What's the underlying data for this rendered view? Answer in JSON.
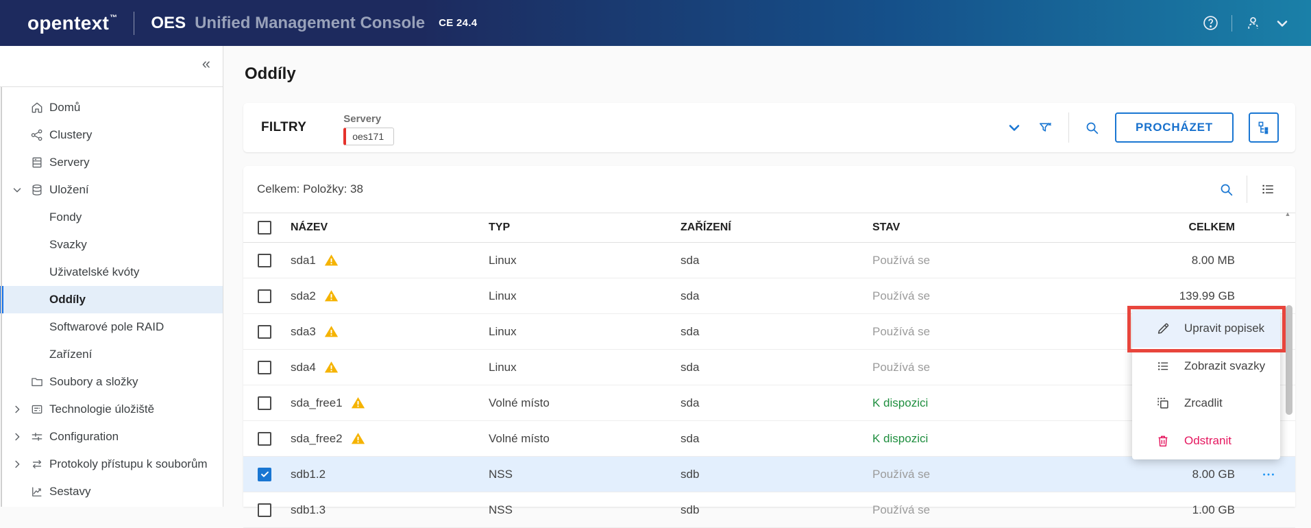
{
  "app_header": {
    "brand": "opentext",
    "brand_tm": "™",
    "product": "OES",
    "product_title": "Unified Management Console",
    "version": "CE 24.4"
  },
  "sidebar": {
    "collapse_glyph": "«",
    "items": [
      {
        "label": "Domů",
        "icon": "home-icon",
        "level": 1
      },
      {
        "label": "Clustery",
        "icon": "clusters-icon",
        "level": 1
      },
      {
        "label": "Servery",
        "icon": "servers-icon",
        "level": 1
      },
      {
        "label": "Uložení",
        "icon": "storage-icon",
        "level": 1,
        "chevron": "down",
        "expanded": true
      },
      {
        "label": "Fondy",
        "level": 2
      },
      {
        "label": "Svazky",
        "level": 2
      },
      {
        "label": "Uživatelské kvóty",
        "level": 2
      },
      {
        "label": "Oddíly",
        "level": 2,
        "active": true
      },
      {
        "label": "Softwarové pole RAID",
        "level": 2
      },
      {
        "label": "Zařízení",
        "level": 2
      },
      {
        "label": "Soubory a složky",
        "icon": "folder-icon",
        "level": 1
      },
      {
        "label": "Technologie úložiště",
        "icon": "storage-tech-icon",
        "level": 1,
        "chevron": "right"
      },
      {
        "label": "Configuration",
        "icon": "configuration-icon",
        "level": 1,
        "chevron": "right"
      },
      {
        "label": "Protokoly přístupu k souborům",
        "icon": "protocols-icon",
        "level": 1,
        "chevron": "right"
      },
      {
        "label": "Sestavy",
        "icon": "reports-icon",
        "level": 1
      }
    ]
  },
  "page": {
    "title": "Oddíly"
  },
  "filter_bar": {
    "label": "FILTRY",
    "filter_group_label": "Servery",
    "filter_chip": "oes171",
    "browse_button": "PROCHÁZET"
  },
  "table": {
    "summary": "Celkem: Položky: 38",
    "columns": [
      "NÁZEV",
      "TYP",
      "ZAŘÍZENÍ",
      "STAV",
      "CELKEM"
    ],
    "rows": [
      {
        "name": "sda1",
        "warning": true,
        "type": "Linux",
        "device": "sda",
        "status": "Používá se",
        "status_kind": "used",
        "total": "8.00 MB"
      },
      {
        "name": "sda2",
        "warning": true,
        "type": "Linux",
        "device": "sda",
        "status": "Používá se",
        "status_kind": "used",
        "total": "139.99 GB"
      },
      {
        "name": "sda3",
        "warning": true,
        "type": "Linux",
        "device": "sda",
        "status": "Používá se",
        "status_kind": "used",
        "total": ""
      },
      {
        "name": "sda4",
        "warning": true,
        "type": "Linux",
        "device": "sda",
        "status": "Používá se",
        "status_kind": "used",
        "total": ""
      },
      {
        "name": "sda_free1",
        "warning": true,
        "type": "Volné místo",
        "device": "sda",
        "status": "K dispozici",
        "status_kind": "available",
        "total": ""
      },
      {
        "name": "sda_free2",
        "warning": true,
        "type": "Volné místo",
        "device": "sda",
        "status": "K dispozici",
        "status_kind": "available",
        "total": ""
      },
      {
        "name": "sdb1.2",
        "warning": false,
        "type": "NSS",
        "device": "sdb",
        "status": "Používá se",
        "status_kind": "used",
        "total": "8.00 GB",
        "selected": true,
        "checked": true,
        "more": true
      },
      {
        "name": "sdb1.3",
        "warning": false,
        "type": "NSS",
        "device": "sdb",
        "status": "Používá se",
        "status_kind": "used",
        "total": "1.00 GB"
      }
    ]
  },
  "context_menu": {
    "items": [
      {
        "label": "Upravit popisek",
        "icon": "pencil-icon",
        "highlighted": true
      },
      {
        "label": "Zobrazit svazky",
        "icon": "volumes-list-icon"
      },
      {
        "label": "Zrcadlit",
        "icon": "mirror-icon"
      },
      {
        "label": "Odstranit",
        "icon": "trash-icon",
        "danger": true
      }
    ]
  },
  "colors": {
    "accent_blue": "#1976d2",
    "header_gradient_start": "#1d2a5e",
    "header_gradient_end": "#1a80a8",
    "annotation_red": "#e8453c",
    "chip_accent_red": "#e5322c",
    "warning_amber": "#f5b300",
    "status_green": "#1e8e3e",
    "status_gray": "#9b9b9b",
    "danger_pink": "#e5175f",
    "selected_row_bg": "#e3effd",
    "active_nav_bg": "#e4eef9"
  }
}
